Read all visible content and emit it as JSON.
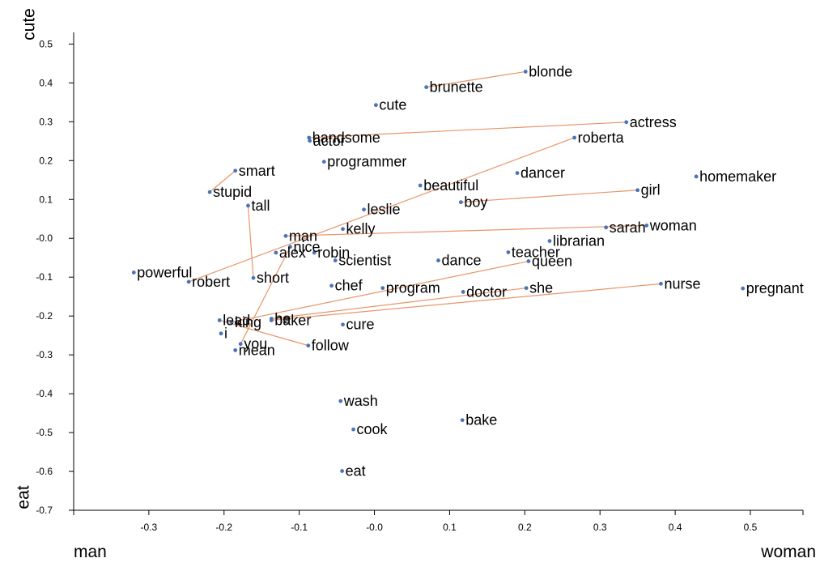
{
  "chart_data": {
    "type": "scatter",
    "x_axis_left_label": "man",
    "x_axis_right_label": "woman",
    "y_axis_top_label": "cute",
    "y_axis_bottom_label": "eat",
    "xlim": [
      -0.4,
      0.57
    ],
    "ylim": [
      -0.7,
      0.53
    ],
    "x_ticks": [
      "-0.3",
      "-0.2",
      "-0.1",
      "-0.0",
      "0.1",
      "0.2",
      "0.3",
      "0.4",
      "0.5"
    ],
    "x_tick_values": [
      -0.3,
      -0.2,
      -0.1,
      0.0,
      0.1,
      0.2,
      0.3,
      0.4,
      0.5
    ],
    "y_ticks": [
      "0.5",
      "0.4",
      "0.3",
      "0.2",
      "0.1",
      "-0.0",
      "-0.1",
      "-0.2",
      "-0.3",
      "-0.4",
      "-0.5",
      "-0.6",
      "-0.7"
    ],
    "y_tick_values": [
      0.5,
      0.4,
      0.3,
      0.2,
      0.1,
      0.0,
      -0.1,
      -0.2,
      -0.3,
      -0.4,
      -0.5,
      -0.6,
      -0.7
    ],
    "grid": false,
    "point_color": "#4a74b8",
    "line_color": "#e8956a",
    "points": [
      {
        "label": "blonde",
        "x": 0.201,
        "y": 0.429
      },
      {
        "label": "brunette",
        "x": 0.069,
        "y": 0.389
      },
      {
        "label": "cute",
        "x": 0.002,
        "y": 0.343
      },
      {
        "label": "actress",
        "x": 0.335,
        "y": 0.299
      },
      {
        "label": "handsome",
        "x": -0.087,
        "y": 0.259
      },
      {
        "label": "actor",
        "x": -0.086,
        "y": 0.251
      },
      {
        "label": "roberta",
        "x": 0.266,
        "y": 0.259
      },
      {
        "label": "programmer",
        "x": -0.067,
        "y": 0.197
      },
      {
        "label": "smart",
        "x": -0.185,
        "y": 0.174
      },
      {
        "label": "dancer",
        "x": 0.19,
        "y": 0.168
      },
      {
        "label": "homemaker",
        "x": 0.428,
        "y": 0.159
      },
      {
        "label": "beautiful",
        "x": 0.061,
        "y": 0.136
      },
      {
        "label": "stupid",
        "x": -0.219,
        "y": 0.119
      },
      {
        "label": "girl",
        "x": 0.35,
        "y": 0.124
      },
      {
        "label": "tall",
        "x": -0.168,
        "y": 0.084
      },
      {
        "label": "boy",
        "x": 0.115,
        "y": 0.093
      },
      {
        "label": "leslie",
        "x": -0.014,
        "y": 0.074
      },
      {
        "label": "woman",
        "x": 0.362,
        "y": 0.033
      },
      {
        "label": "sarah",
        "x": 0.308,
        "y": 0.028
      },
      {
        "label": "kelly",
        "x": -0.042,
        "y": 0.024
      },
      {
        "label": "man",
        "x": -0.118,
        "y": 0.006
      },
      {
        "label": "librarian",
        "x": 0.233,
        "y": -0.007
      },
      {
        "label": "nice",
        "x": -0.112,
        "y": -0.022
      },
      {
        "label": "alex",
        "x": -0.131,
        "y": -0.037
      },
      {
        "label": "robin",
        "x": -0.08,
        "y": -0.037
      },
      {
        "label": "teacher",
        "x": 0.178,
        "y": -0.036
      },
      {
        "label": "scientist",
        "x": -0.052,
        "y": -0.057
      },
      {
        "label": "dance",
        "x": 0.085,
        "y": -0.057
      },
      {
        "label": "queen",
        "x": 0.205,
        "y": -0.059
      },
      {
        "label": "powerful",
        "x": -0.32,
        "y": -0.088
      },
      {
        "label": "short",
        "x": -0.161,
        "y": -0.102
      },
      {
        "label": "robert",
        "x": -0.247,
        "y": -0.112
      },
      {
        "label": "nurse",
        "x": 0.381,
        "y": -0.117
      },
      {
        "label": "pregnant",
        "x": 0.49,
        "y": -0.129
      },
      {
        "label": "chef",
        "x": -0.057,
        "y": -0.122
      },
      {
        "label": "program",
        "x": 0.011,
        "y": -0.128
      },
      {
        "label": "she",
        "x": 0.202,
        "y": -0.128
      },
      {
        "label": "doctor",
        "x": 0.118,
        "y": -0.138
      },
      {
        "label": "lead",
        "x": -0.206,
        "y": -0.211
      },
      {
        "label": "he",
        "x": -0.137,
        "y": -0.207
      },
      {
        "label": "baker",
        "x": -0.137,
        "y": -0.211
      },
      {
        "label": "king",
        "x": -0.19,
        "y": -0.216
      },
      {
        "label": "cure",
        "x": -0.042,
        "y": -0.222
      },
      {
        "label": "i",
        "x": -0.204,
        "y": -0.245
      },
      {
        "label": "you",
        "x": -0.178,
        "y": -0.272
      },
      {
        "label": "follow",
        "x": -0.088,
        "y": -0.276
      },
      {
        "label": "mean",
        "x": -0.185,
        "y": -0.288
      },
      {
        "label": "wash",
        "x": -0.045,
        "y": -0.419
      },
      {
        "label": "bake",
        "x": 0.117,
        "y": -0.468
      },
      {
        "label": "cook",
        "x": -0.028,
        "y": -0.492
      },
      {
        "label": "eat",
        "x": -0.043,
        "y": -0.599
      }
    ],
    "links": [
      [
        "brunette",
        "blonde"
      ],
      [
        "handsome",
        "actress"
      ],
      [
        "smart",
        "stupid"
      ],
      [
        "tall",
        "short"
      ],
      [
        "robert",
        "roberta"
      ],
      [
        "boy",
        "girl"
      ],
      [
        "man",
        "woman"
      ],
      [
        "king",
        "queen"
      ],
      [
        "he",
        "she"
      ],
      [
        "baker",
        "nurse"
      ],
      [
        "lead",
        "follow"
      ],
      [
        "you",
        "nice"
      ]
    ]
  }
}
